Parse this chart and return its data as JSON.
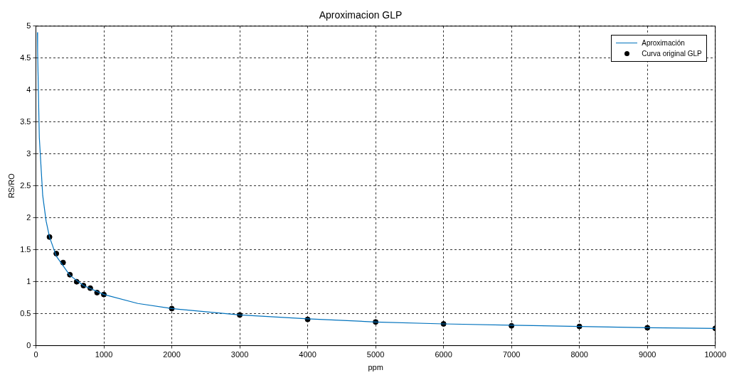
{
  "chart_data": {
    "type": "line",
    "title": "Aproximacion GLP",
    "xlabel": "ppm",
    "ylabel": "RS/RO",
    "xlim": [
      0,
      10000
    ],
    "ylim": [
      0,
      5
    ],
    "xticks": [
      0,
      1000,
      2000,
      3000,
      4000,
      5000,
      6000,
      7000,
      8000,
      9000,
      10000
    ],
    "yticks": [
      0,
      0.5,
      1,
      1.5,
      2,
      2.5,
      3,
      3.5,
      4,
      4.5,
      5
    ],
    "grid": true,
    "legend": "top right",
    "series": [
      {
        "name": "Aproximación",
        "type": "line",
        "color": "#0072bd",
        "marker": "none",
        "line_style": "solid",
        "x": [
          22,
          25,
          50,
          100,
          150,
          200,
          300,
          500,
          700,
          1000,
          1500,
          2000,
          3000,
          4000,
          5000,
          6000,
          7000,
          8000,
          9000,
          10000
        ],
        "values": [
          4.9,
          4.6,
          3.26,
          2.35,
          1.95,
          1.7,
          1.4,
          1.1,
          0.94,
          0.8,
          0.66,
          0.58,
          0.48,
          0.42,
          0.37,
          0.34,
          0.32,
          0.3,
          0.28,
          0.27
        ]
      },
      {
        "name": "Curva original GLP",
        "type": "scatter",
        "color": "#000000",
        "marker": "circle",
        "x": [
          200,
          300,
          400,
          500,
          600,
          700,
          800,
          900,
          1000,
          2000,
          3000,
          4000,
          5000,
          6000,
          7000,
          8000,
          9000,
          10000
        ],
        "values": [
          1.7,
          1.44,
          1.3,
          1.11,
          1.0,
          0.94,
          0.9,
          0.83,
          0.8,
          0.58,
          0.48,
          0.41,
          0.37,
          0.34,
          0.31,
          0.3,
          0.28,
          0.27
        ]
      }
    ]
  }
}
